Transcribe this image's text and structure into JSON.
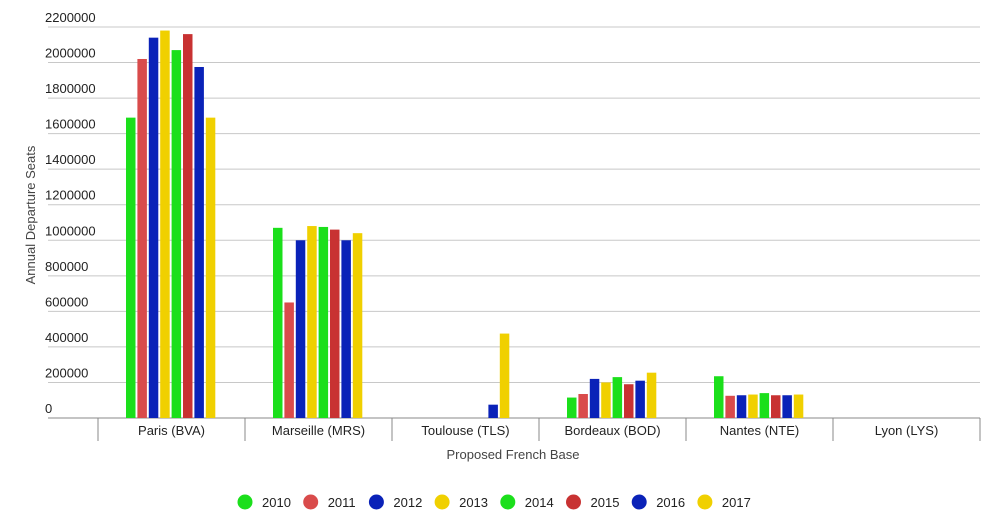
{
  "chart_data": {
    "type": "bar",
    "xlabel": "Proposed French Base",
    "ylabel": "Annual Departure Seats",
    "ylim": [
      0,
      2200000
    ],
    "yticks": [
      0,
      200000,
      400000,
      600000,
      800000,
      1000000,
      1200000,
      1400000,
      1600000,
      1800000,
      2000000,
      2200000
    ],
    "grid": true,
    "legend_position": "bottom",
    "categories": [
      "Paris (BVA)",
      "Marseille (MRS)",
      "Toulouse (TLS)",
      "Bordeaux (BOD)",
      "Nantes (NTE)",
      "Lyon (LYS)"
    ],
    "series": [
      {
        "name": "2010",
        "color": "#1bdf1b",
        "values": [
          1690000,
          1070000,
          0,
          115000,
          235000,
          0
        ]
      },
      {
        "name": "2011",
        "color": "#d94b4b",
        "values": [
          2020000,
          650000,
          0,
          135000,
          125000,
          0
        ]
      },
      {
        "name": "2012",
        "color": "#0a22b8",
        "values": [
          2140000,
          1000000,
          0,
          220000,
          128000,
          0
        ]
      },
      {
        "name": "2013",
        "color": "#f0d000",
        "values": [
          2180000,
          1080000,
          0,
          200000,
          132000,
          0
        ]
      },
      {
        "name": "2014",
        "color": "#1bdf1b",
        "values": [
          2070000,
          1075000,
          0,
          230000,
          140000,
          0
        ]
      },
      {
        "name": "2015",
        "color": "#c83232",
        "values": [
          2160000,
          1060000,
          0,
          190000,
          128000,
          0
        ]
      },
      {
        "name": "2016",
        "color": "#0a22b8",
        "values": [
          1975000,
          1000000,
          75000,
          210000,
          128000,
          0
        ]
      },
      {
        "name": "2017",
        "color": "#f0d000",
        "values": [
          1690000,
          1040000,
          475000,
          255000,
          132000,
          0
        ]
      }
    ]
  }
}
